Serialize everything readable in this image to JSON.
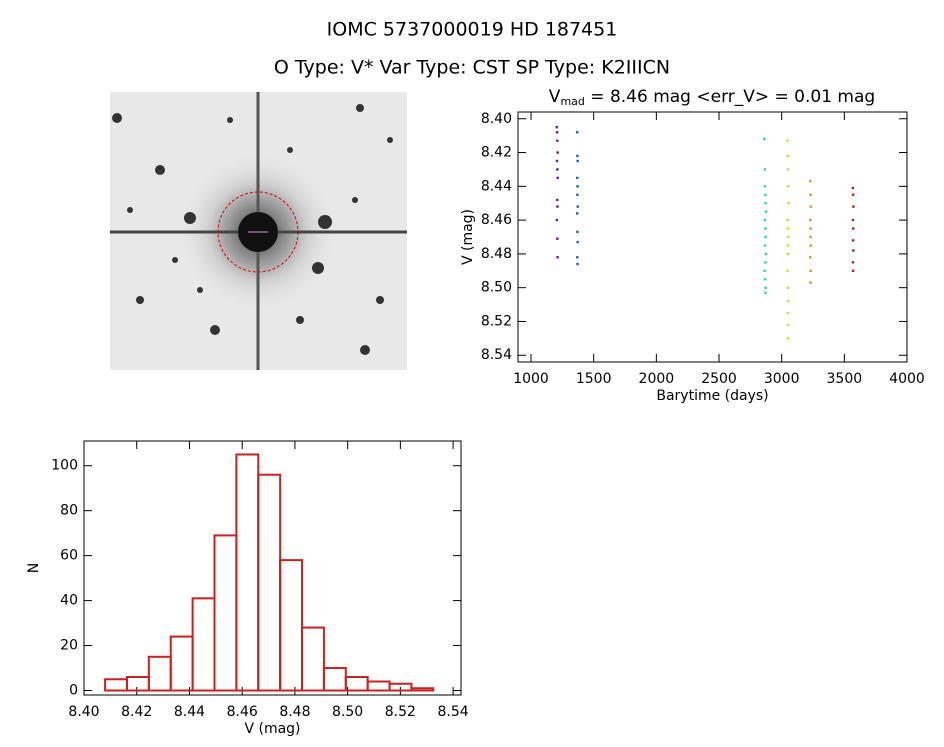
{
  "header": {
    "title": "IOMC 5737000019    HD 187451",
    "subtitle": "O Type: V*   Var Type: CST   SP Type: K2IIICN"
  },
  "chart_data": [
    {
      "type": "scatter",
      "title_symbol": "V",
      "title_subscript": "mad",
      "title": " = 8.46 mag <err_V> = 0.01 mag",
      "xlabel": "Barytime (days)",
      "ylabel": "V (mag)",
      "xlim": [
        896,
        4000
      ],
      "xticks": [
        1000,
        1500,
        2000,
        2500,
        3000,
        3500,
        4000
      ],
      "ylim": [
        8.544,
        8.396
      ],
      "yticks": [
        {
          "value": 8.4,
          "label": "8.40"
        },
        {
          "value": 8.42,
          "label": "8.42"
        },
        {
          "value": 8.44,
          "label": "8.44"
        },
        {
          "value": 8.46,
          "label": "8.46"
        },
        {
          "value": 8.48,
          "label": "8.48"
        },
        {
          "value": 8.5,
          "label": "8.50"
        },
        {
          "value": 8.52,
          "label": "8.52"
        },
        {
          "value": 8.54,
          "label": "8.54"
        }
      ],
      "series": [
        {
          "color": "#6a1a9a",
          "x": [
            1205,
            1208,
            1210,
            1212,
            1207,
            1210,
            1213,
            1209,
            1211,
            1206,
            1210,
            1212
          ],
          "values": [
            8.405,
            8.408,
            8.413,
            8.42,
            8.425,
            8.43,
            8.435,
            8.448,
            8.452,
            8.46,
            8.471,
            8.482
          ]
        },
        {
          "color": "#1a5fc0",
          "x": [
            1368,
            1370,
            1372,
            1369,
            1371,
            1370,
            1373,
            1368,
            1370,
            1372,
            1369,
            1371
          ],
          "values": [
            8.408,
            8.422,
            8.425,
            8.435,
            8.44,
            8.445,
            8.452,
            8.456,
            8.467,
            8.473,
            8.482,
            8.486
          ]
        },
        {
          "color": "#20e090",
          "x": [
            2862,
            2866,
            2868,
            2870,
            2872,
            2874,
            2866,
            2870,
            2872,
            2868,
            2874,
            2870,
            2864,
            2868,
            2872,
            2870
          ],
          "values": [
            8.412,
            8.43,
            8.44,
            8.445,
            8.45,
            8.455,
            8.46,
            8.465,
            8.47,
            8.475,
            8.48,
            8.485,
            8.49,
            8.495,
            8.5,
            8.503
          ]
        },
        {
          "color": "#a8f020",
          "x": [
            3045,
            3048,
            3050,
            3052,
            3055,
            3047,
            3050,
            3053,
            3049,
            3051,
            3046,
            3050,
            3054,
            3048,
            3052,
            3050
          ],
          "values": [
            8.413,
            8.422,
            8.43,
            8.44,
            8.45,
            8.46,
            8.465,
            8.47,
            8.475,
            8.48,
            8.49,
            8.5,
            8.508,
            8.515,
            8.522,
            8.53
          ]
        },
        {
          "color": "#e09020",
          "x": [
            3228,
            3230,
            3232,
            3229,
            3231,
            3230,
            3232,
            3228,
            3231,
            3230
          ],
          "values": [
            8.437,
            8.445,
            8.452,
            8.46,
            8.465,
            8.47,
            8.475,
            8.482,
            8.49,
            8.497
          ]
        },
        {
          "color": "#b02020",
          "x": [
            3568,
            3570,
            3572,
            3569,
            3571,
            3570,
            3572,
            3569,
            3570
          ],
          "values": [
            8.441,
            8.445,
            8.452,
            8.46,
            8.465,
            8.472,
            8.478,
            8.485,
            8.49
          ]
        }
      ]
    },
    {
      "type": "histogram",
      "xlabel": "V (mag)",
      "ylabel": "N",
      "color": "#cc2020",
      "bins": [
        8.408,
        8.4163,
        8.4246,
        8.4329,
        8.4412,
        8.4495,
        8.4578,
        8.4661,
        8.4744,
        8.4827,
        8.491,
        8.4993,
        8.5076,
        8.5159,
        8.5242,
        8.5325
      ],
      "values": [
        5,
        6,
        15,
        24,
        41,
        69,
        105,
        96,
        58,
        28,
        10,
        6,
        4,
        3,
        1
      ],
      "xlim": [
        8.4,
        8.543
      ],
      "xticks": [
        {
          "value": 8.4,
          "label": "8.40"
        },
        {
          "value": 8.42,
          "label": "8.42"
        },
        {
          "value": 8.44,
          "label": "8.44"
        },
        {
          "value": 8.46,
          "label": "8.46"
        },
        {
          "value": 8.48,
          "label": "8.48"
        },
        {
          "value": 8.5,
          "label": "8.50"
        },
        {
          "value": 8.52,
          "label": "8.52"
        },
        {
          "value": 8.54,
          "label": "8.54"
        }
      ],
      "ylim": [
        -2,
        111
      ],
      "yticks": [
        0,
        20,
        40,
        60,
        80,
        100
      ]
    }
  ]
}
